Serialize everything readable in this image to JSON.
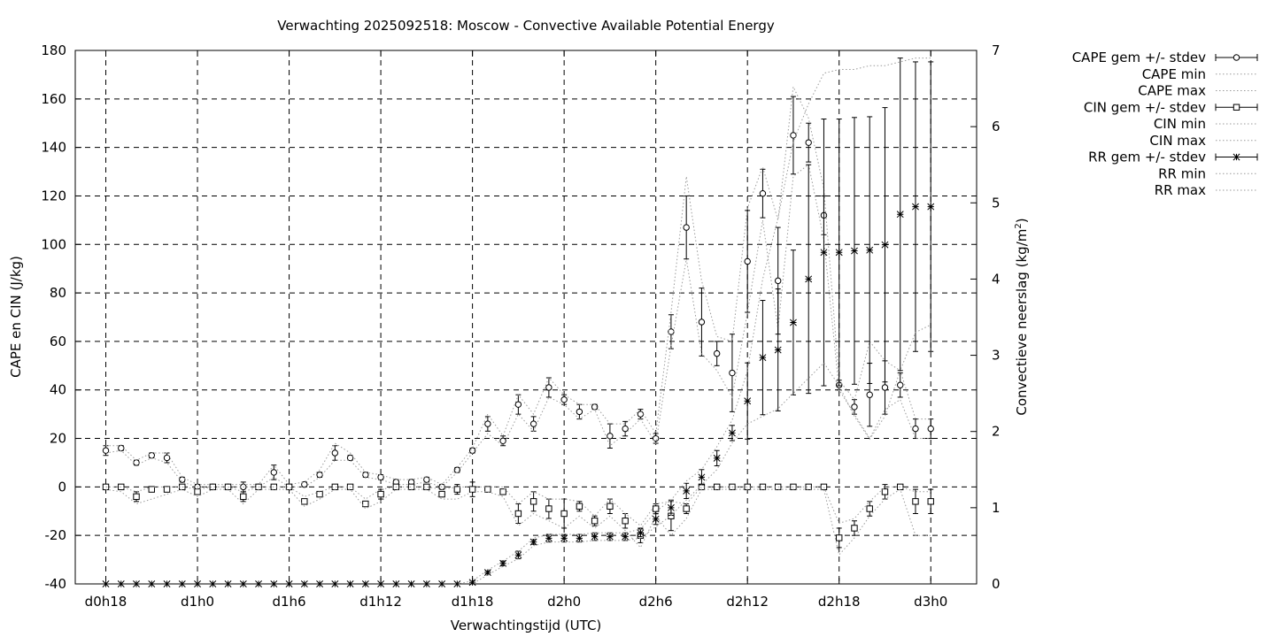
{
  "chart_data": {
    "type": "line",
    "title": "Verwachting 2025092518: Moscow - Convective Available Potential Energy",
    "xlabel": "Verwachtingstijd (UTC)",
    "ylabel": "CAPE en CIN (J/kg)",
    "y2label": "Convectieve neerslag (kg/m",
    "y2label_sup": "2",
    "y2label_end": ")",
    "xlim": [
      -2,
      57
    ],
    "ylim": [
      -40,
      180
    ],
    "y2lim": [
      0,
      7
    ],
    "grid": true,
    "legend_position": "top-right outside",
    "xticks": [
      {
        "x": 0,
        "label": "d0h18"
      },
      {
        "x": 6,
        "label": "d1h0"
      },
      {
        "x": 12,
        "label": "d1h6"
      },
      {
        "x": 18,
        "label": "d1h12"
      },
      {
        "x": 24,
        "label": "d1h18"
      },
      {
        "x": 30,
        "label": "d2h0"
      },
      {
        "x": 36,
        "label": "d2h6"
      },
      {
        "x": 42,
        "label": "d2h12"
      },
      {
        "x": 48,
        "label": "d2h18"
      },
      {
        "x": 54,
        "label": "d3h0"
      }
    ],
    "yticks": [
      -40,
      -20,
      0,
      20,
      40,
      60,
      80,
      100,
      120,
      140,
      160,
      180
    ],
    "y2ticks": [
      0,
      1,
      2,
      3,
      4,
      5,
      6,
      7
    ],
    "legend": [
      {
        "label": "CAPE gem +/- stdev",
        "style": "errbar",
        "marker": "circle"
      },
      {
        "label": "CAPE min",
        "style": "dotted"
      },
      {
        "label": "CAPE max",
        "style": "dotted"
      },
      {
        "label": "CIN gem +/- stdev",
        "style": "errbar",
        "marker": "square"
      },
      {
        "label": "CIN min",
        "style": "dotted"
      },
      {
        "label": "CIN max",
        "style": "dotted"
      },
      {
        "label": "RR gem +/- stdev",
        "style": "errbar",
        "marker": "star"
      },
      {
        "label": "RR min",
        "style": "dotted"
      },
      {
        "label": "RR max",
        "style": "dotted"
      }
    ],
    "x": [
      0,
      1,
      2,
      3,
      4,
      5,
      6,
      7,
      8,
      9,
      10,
      11,
      12,
      13,
      14,
      15,
      16,
      17,
      18,
      19,
      20,
      21,
      22,
      23,
      24,
      25,
      26,
      27,
      28,
      29,
      30,
      31,
      32,
      33,
      34,
      35,
      36,
      37,
      38,
      39,
      40,
      41,
      42,
      43,
      44,
      45,
      46,
      47,
      48,
      49,
      50,
      51,
      52,
      53,
      54
    ],
    "series": [
      {
        "name": "CAPE gem +/- stdev",
        "axis": "y1",
        "marker": "circle",
        "values": [
          15,
          16,
          10,
          13,
          12,
          3,
          0,
          0,
          0,
          0,
          0,
          6,
          0,
          1,
          5,
          14,
          12,
          5,
          4,
          2,
          2,
          3,
          0,
          7,
          15,
          26,
          19,
          34,
          26,
          41,
          36,
          31,
          33,
          21,
          24,
          30,
          20,
          64,
          107,
          68,
          55,
          47,
          93,
          121,
          85,
          145,
          142,
          112,
          42,
          33,
          38,
          41,
          42,
          24,
          24
        ],
        "err": [
          2,
          1,
          1,
          1,
          2,
          1,
          1,
          1,
          1,
          2,
          1,
          3,
          1,
          1,
          1,
          3,
          1,
          1,
          1,
          1,
          1,
          1,
          1,
          1,
          1,
          3,
          2,
          4,
          3,
          4,
          2,
          3,
          1,
          5,
          3,
          2,
          2,
          7,
          13,
          14,
          5,
          16,
          21,
          10,
          22,
          16,
          8,
          8,
          2,
          3,
          13,
          11,
          5,
          4,
          4
        ]
      },
      {
        "name": "CAPE min",
        "axis": "y1",
        "values": [
          14,
          15,
          9,
          12,
          10,
          2,
          0,
          0,
          0,
          0,
          0,
          4,
          0,
          0,
          4,
          11,
          11,
          4,
          3,
          1,
          1,
          2,
          0,
          6,
          14,
          22,
          17,
          30,
          23,
          37,
          34,
          28,
          32,
          17,
          22,
          28,
          18,
          58,
          94,
          55,
          48,
          37,
          72,
          110,
          65,
          128,
          133,
          102,
          40,
          30,
          20,
          32,
          36,
          20,
          20
        ]
      },
      {
        "name": "CAPE max",
        "axis": "y1",
        "values": [
          17,
          17,
          11,
          14,
          14,
          4,
          1,
          1,
          1,
          1,
          1,
          9,
          1,
          2,
          7,
          18,
          14,
          6,
          5,
          3,
          3,
          4,
          1,
          8,
          16,
          30,
          21,
          38,
          30,
          45,
          38,
          34,
          34,
          26,
          26,
          32,
          22,
          72,
          128,
          85,
          62,
          60,
          115,
          132,
          110,
          165,
          152,
          123,
          44,
          36,
          60,
          52,
          48,
          28,
          28
        ]
      },
      {
        "name": "CIN gem +/- stdev",
        "axis": "y1",
        "marker": "square",
        "values": [
          0,
          0,
          -4,
          -1,
          -1,
          0,
          -2,
          0,
          0,
          -4,
          0,
          0,
          0,
          -6,
          -3,
          0,
          0,
          -7,
          -3,
          0,
          0,
          0,
          -3,
          -1,
          -1,
          -1,
          -2,
          -11,
          -6,
          -9,
          -11,
          -8,
          -14,
          -8,
          -14,
          -20,
          -9,
          -12,
          -9,
          0,
          0,
          0,
          0,
          0,
          0,
          0,
          0,
          0,
          -21,
          -17,
          -9,
          -2,
          0,
          -6,
          -6
        ],
        "err": [
          1,
          1,
          2,
          1,
          1,
          1,
          1,
          1,
          1,
          2,
          1,
          1,
          1,
          1,
          1,
          1,
          1,
          1,
          2,
          1,
          1,
          1,
          1,
          2,
          3,
          1,
          1,
          4,
          4,
          4,
          6,
          2,
          2,
          3,
          3,
          3,
          2,
          6,
          2,
          1,
          1,
          1,
          1,
          1,
          1,
          1,
          1,
          1,
          4,
          3,
          3,
          3,
          1,
          5,
          5
        ]
      },
      {
        "name": "CIN min",
        "axis": "y1",
        "values": [
          -1,
          -2,
          -7,
          -5,
          -3,
          -1,
          -4,
          -1,
          -1,
          -7,
          -1,
          -1,
          -1,
          -8,
          -5,
          -1,
          -1,
          -9,
          -6,
          -1,
          -1,
          -1,
          -5,
          -5,
          -2,
          -2,
          -4,
          -16,
          -11,
          -14,
          -17,
          -12,
          -17,
          -12,
          -18,
          -25,
          -12,
          -20,
          -13,
          -1,
          -1,
          -1,
          -1,
          -1,
          -1,
          -1,
          -1,
          -1,
          -28,
          -21,
          -12,
          -5,
          -1,
          -20,
          -20
        ]
      },
      {
        "name": "CIN max",
        "axis": "y1",
        "values": [
          0,
          0,
          -2,
          0,
          0,
          0,
          -1,
          0,
          0,
          -2,
          0,
          0,
          0,
          -4,
          -2,
          0,
          0,
          -5,
          -1,
          0,
          0,
          0,
          -1,
          0,
          0,
          0,
          0,
          -7,
          -2,
          -5,
          -5,
          -6,
          -12,
          -5,
          -11,
          -16,
          -7,
          -6,
          -7,
          0,
          0,
          0,
          0,
          0,
          0,
          0,
          0,
          0,
          -15,
          -13,
          -6,
          0,
          0,
          -2,
          -2
        ]
      },
      {
        "name": "RR gem +/- stdev",
        "axis": "y2",
        "marker": "star",
        "values": [
          0,
          0,
          0,
          0,
          0,
          0,
          0,
          0,
          0,
          0,
          0,
          0,
          0,
          0,
          0,
          0,
          0,
          0,
          0,
          0,
          0,
          0,
          0,
          0,
          0.02,
          0.15,
          0.27,
          0.38,
          0.55,
          0.6,
          0.6,
          0.6,
          0.62,
          0.62,
          0.62,
          0.67,
          0.85,
          1.0,
          1.22,
          1.4,
          1.65,
          1.98,
          2.4,
          2.97,
          3.07,
          3.43,
          4.0,
          4.35,
          4.35,
          4.37,
          4.38,
          4.45,
          4.85,
          4.95,
          4.95
        ],
        "err": [
          0,
          0,
          0,
          0,
          0,
          0,
          0,
          0,
          0,
          0,
          0,
          0,
          0,
          0,
          0,
          0,
          0,
          0,
          0,
          0,
          0,
          0,
          0,
          0,
          0.02,
          0.02,
          0.03,
          0.05,
          0.03,
          0.05,
          0.05,
          0.05,
          0.05,
          0.05,
          0.05,
          0.05,
          0.07,
          0.1,
          0.1,
          0.1,
          0.1,
          0.1,
          0.5,
          0.75,
          0.8,
          0.95,
          1.5,
          1.75,
          1.75,
          1.75,
          1.75,
          1.8,
          2.05,
          1.9,
          1.9
        ]
      },
      {
        "name": "RR min",
        "axis": "y2",
        "values": [
          0,
          0,
          0,
          0,
          0,
          0,
          0,
          0,
          0,
          0,
          0,
          0,
          0,
          0,
          0,
          0,
          0,
          0,
          0,
          0,
          0,
          0,
          0,
          0,
          0,
          0.12,
          0.23,
          0.33,
          0.5,
          0.55,
          0.55,
          0.55,
          0.57,
          0.57,
          0.57,
          0.6,
          0.75,
          0.9,
          1.1,
          1.3,
          1.5,
          1.85,
          2.1,
          2.2,
          2.3,
          2.5,
          2.7,
          2.9,
          2.6,
          2.2,
          1.9,
          2.2,
          2.8,
          3.3,
          3.4
        ]
      },
      {
        "name": "RR max",
        "axis": "y2",
        "values": [
          0,
          0,
          0,
          0,
          0,
          0,
          0,
          0,
          0,
          0,
          0,
          0,
          0,
          0,
          0,
          0,
          0,
          0,
          0,
          0,
          0,
          0,
          0,
          0,
          0.04,
          0.18,
          0.3,
          0.43,
          0.6,
          0.65,
          0.65,
          0.65,
          0.67,
          0.67,
          0.67,
          0.72,
          0.95,
          1.1,
          1.35,
          1.5,
          1.8,
          2.15,
          2.8,
          4.0,
          4.8,
          5.8,
          6.3,
          6.7,
          6.75,
          6.75,
          6.8,
          6.8,
          6.85,
          6.9,
          6.9
        ]
      }
    ]
  }
}
